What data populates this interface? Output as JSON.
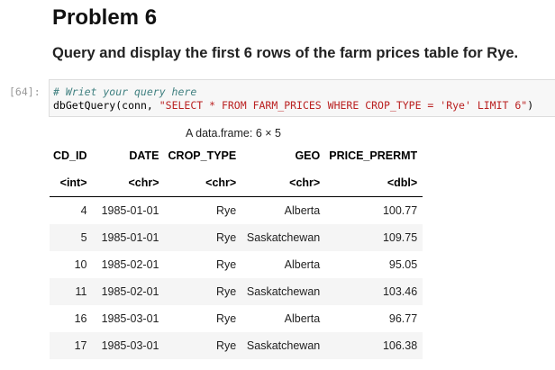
{
  "heading": "Problem 6",
  "instruction": "Query and display the first 6 rows of the farm prices table for Rye.",
  "cell": {
    "prompt": "[64]:",
    "comment": "# Wriet your query here",
    "code": {
      "function": "dbGetQuery",
      "args": "(conn, ",
      "string": "\"SELECT * FROM FARM_PRICES WHERE CROP_TYPE = 'Rye' LIMIT 6\"",
      "close": ")"
    }
  },
  "output": {
    "caption": "A data.frame: 6 × 5",
    "table": {
      "columns": [
        "CD_ID",
        "DATE",
        "CROP_TYPE",
        "GEO",
        "PRICE_PRERMT"
      ],
      "types": [
        "<int>",
        "<chr>",
        "<chr>",
        "<chr>",
        "<dbl>"
      ],
      "rows": [
        [
          4,
          "1985-01-01",
          "Rye",
          "Alberta",
          100.77
        ],
        [
          5,
          "1985-01-01",
          "Rye",
          "Saskatchewan",
          109.75
        ],
        [
          10,
          "1985-02-01",
          "Rye",
          "Alberta",
          95.05
        ],
        [
          11,
          "1985-02-01",
          "Rye",
          "Saskatchewan",
          103.46
        ],
        [
          16,
          "1985-03-01",
          "Rye",
          "Alberta",
          96.77
        ],
        [
          17,
          "1985-03-01",
          "Rye",
          "Saskatchewan",
          106.38
        ]
      ]
    }
  }
}
